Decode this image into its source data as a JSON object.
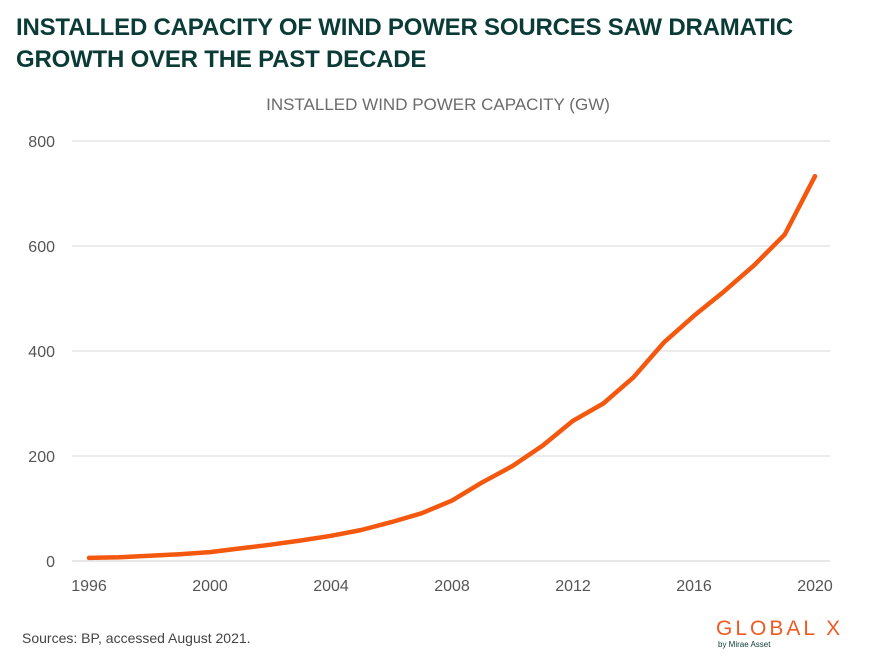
{
  "headline": "INSTALLED CAPACITY OF WIND POWER SOURCES SAW DRAMATIC GROWTH OVER THE PAST DECADE",
  "source": "Sources: BP, accessed August 2021.",
  "logo": {
    "brand": "GLOBAL X",
    "tagline": "by Mirae Asset"
  },
  "colors": {
    "line": "#f4580f",
    "headline": "#0b3b36",
    "grid": "#d9d9d9",
    "logo": "#f15a22"
  },
  "chart_data": {
    "type": "line",
    "title": "INSTALLED WIND POWER CAPACITY (GW)",
    "xlabel": "",
    "ylabel": "",
    "x": [
      1996,
      1997,
      1998,
      1999,
      2000,
      2001,
      2002,
      2003,
      2004,
      2005,
      2006,
      2007,
      2008,
      2009,
      2010,
      2011,
      2012,
      2013,
      2014,
      2015,
      2016,
      2017,
      2018,
      2019,
      2020
    ],
    "series": [
      {
        "name": "",
        "values": [
          6,
          7,
          10,
          13,
          17,
          24,
          31,
          39,
          48,
          59,
          74,
          91,
          115,
          150,
          181,
          220,
          267,
          300,
          350,
          416,
          467,
          514,
          564,
          622,
          733
        ]
      }
    ],
    "xlim": [
      1996,
      2020
    ],
    "ylim": [
      0,
      800
    ],
    "xticks": [
      1996,
      2000,
      2004,
      2008,
      2012,
      2016,
      2020
    ],
    "yticks": [
      0,
      200,
      400,
      600,
      800
    ],
    "grid": true,
    "legend": "none"
  }
}
